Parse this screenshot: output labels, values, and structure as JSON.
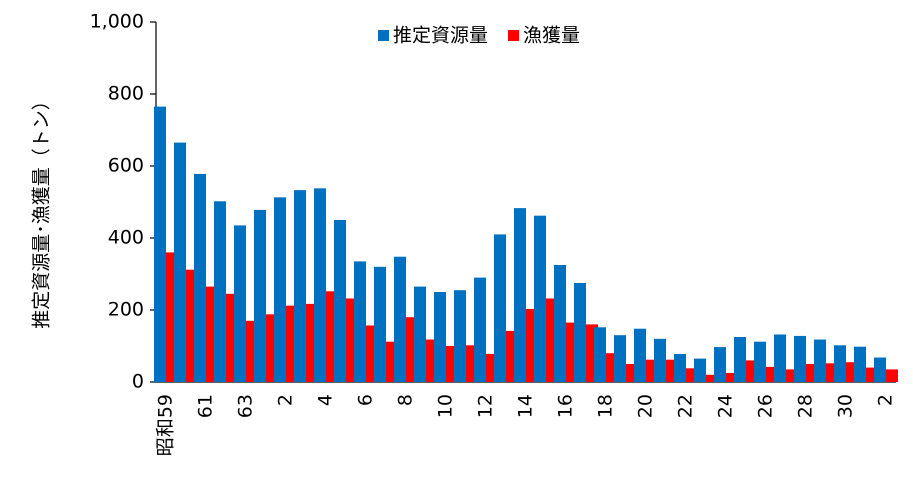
{
  "chart_data": {
    "type": "bar",
    "y_label": "推定資源量･漁獲量（トン）",
    "categories": [
      "昭和59",
      null,
      "61",
      null,
      "63",
      null,
      "2",
      null,
      "4",
      null,
      "6",
      null,
      "8",
      null,
      "10",
      null,
      "12",
      null,
      "14",
      null,
      "16",
      null,
      "18",
      null,
      "20",
      null,
      "22",
      null,
      "24",
      null,
      "26",
      null,
      "28",
      null,
      "30",
      null,
      "2"
    ],
    "series": [
      {
        "name": "推定資源量",
        "color": "#0070c0",
        "values": [
          765,
          665,
          578,
          502,
          435,
          478,
          513,
          533,
          538,
          450,
          335,
          320,
          348,
          265,
          250,
          255,
          290,
          410,
          483,
          462,
          325,
          275,
          152,
          130,
          148,
          120,
          78,
          65,
          97,
          125,
          112,
          132,
          128,
          118,
          102,
          98,
          68
        ]
      },
      {
        "name": "漁獲量",
        "color": "#ff0000",
        "values": [
          360,
          312,
          265,
          245,
          170,
          188,
          212,
          217,
          252,
          232,
          157,
          112,
          180,
          118,
          100,
          102,
          78,
          142,
          203,
          232,
          165,
          160,
          80,
          50,
          62,
          62,
          38,
          20,
          25,
          60,
          42,
          35,
          50,
          52,
          55,
          40,
          35
        ]
      }
    ],
    "ylim": [
      0,
      1000
    ],
    "yticks": [
      0,
      200,
      400,
      600,
      800,
      {
        "value": 1000,
        "label": "1,000"
      }
    ]
  }
}
